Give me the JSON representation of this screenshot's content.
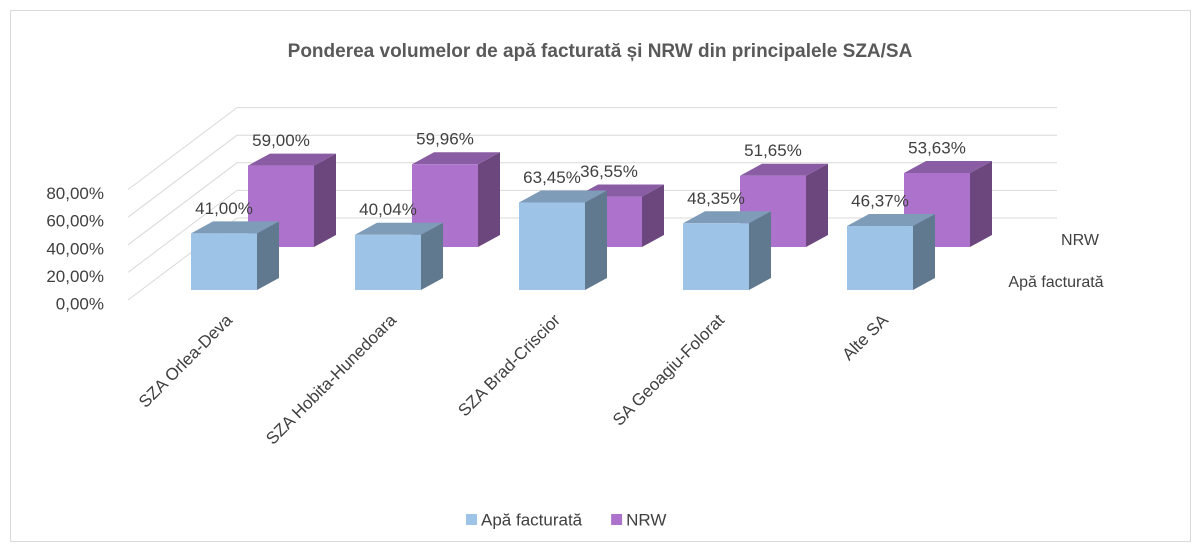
{
  "chart_data": {
    "type": "bar3d",
    "title": "Ponderea volumelor de apă facturată și NRW din principalele SZA/SA",
    "categories": [
      "SZA Orlea-Deva",
      "SZA Hobita-Hunedoara",
      "SZA Brad-Criscior",
      "SA Geoagiu-Folorat",
      "Alte SA"
    ],
    "series": [
      {
        "name": "Apă facturată",
        "color": "#9dc3e6",
        "values": [
          41.0,
          40.04,
          63.45,
          48.35,
          46.37
        ],
        "value_labels": [
          "41,00%",
          "40,04%",
          "63,45%",
          "48,35%",
          "46,37%"
        ]
      },
      {
        "name": "NRW",
        "color": "#ad73cc",
        "values": [
          59.0,
          59.96,
          36.55,
          51.65,
          53.63
        ],
        "value_labels": [
          "59,00%",
          "59,96%",
          "36,55%",
          "51,65%",
          "53,63%"
        ]
      }
    ],
    "ylim": [
      0,
      80
    ],
    "yticks": [
      {
        "value": 0,
        "label": "0,00%"
      },
      {
        "value": 20,
        "label": "20,00%"
      },
      {
        "value": 40,
        "label": "40,00%"
      },
      {
        "value": 60,
        "label": "60,00%"
      },
      {
        "value": 80,
        "label": "80,00%"
      }
    ],
    "grid": true
  }
}
